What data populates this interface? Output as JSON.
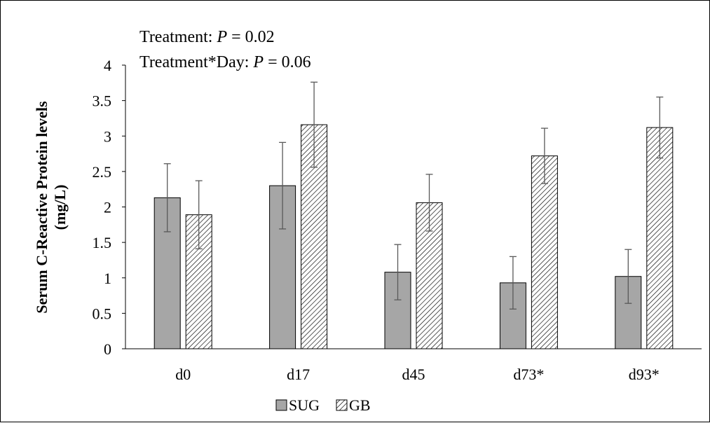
{
  "chart_data": {
    "type": "bar",
    "categories": [
      "d0",
      "d17",
      "d45",
      "d73*",
      "d93*"
    ],
    "series": [
      {
        "name": "SUG",
        "values": [
          2.13,
          2.3,
          1.08,
          0.93,
          1.02
        ],
        "errors": [
          0.48,
          0.61,
          0.39,
          0.37,
          0.38
        ],
        "fill": "#a6a6a6",
        "pattern": "solid"
      },
      {
        "name": "GB",
        "values": [
          1.89,
          3.16,
          2.06,
          2.72,
          3.12
        ],
        "errors": [
          0.48,
          0.6,
          0.4,
          0.39,
          0.43
        ],
        "fill": "#ffffff",
        "pattern": "diagonal-hatch"
      }
    ],
    "ylabel_line1": "Serum C-Reactive Protein levels",
    "ylabel_line2": "(mg/L)",
    "ylim": [
      0,
      4
    ],
    "yticks": [
      0,
      0.5,
      1,
      1.5,
      2,
      2.5,
      3,
      3.5,
      4
    ],
    "ytick_labels": [
      "0",
      "0.5",
      "1",
      "1.5",
      "2",
      "2.5",
      "3",
      "3.5",
      "4"
    ],
    "grid": false,
    "legend_position": "bottom",
    "annotations": {
      "line1_label": "Treatment: ",
      "line1_italic": "P",
      "line1_value": " = 0.02",
      "line2_label": "Treatment*Day: ",
      "line2_italic": "P",
      "line2_value": " = 0.06"
    }
  }
}
